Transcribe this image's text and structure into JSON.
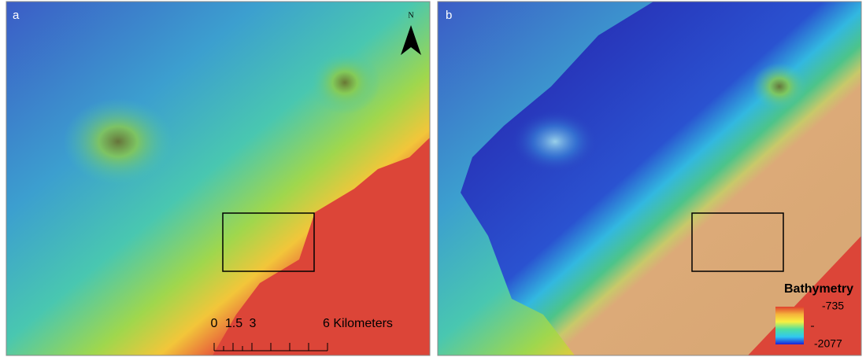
{
  "panels": [
    {
      "label": "a",
      "north": "N",
      "scale_bar": [
        "0",
        "1.5",
        "3",
        "6 Kilometers"
      ]
    },
    {
      "label": "b",
      "legend": {
        "title": "Bathymetry",
        "max": -735,
        "min": -2077
      }
    }
  ]
}
